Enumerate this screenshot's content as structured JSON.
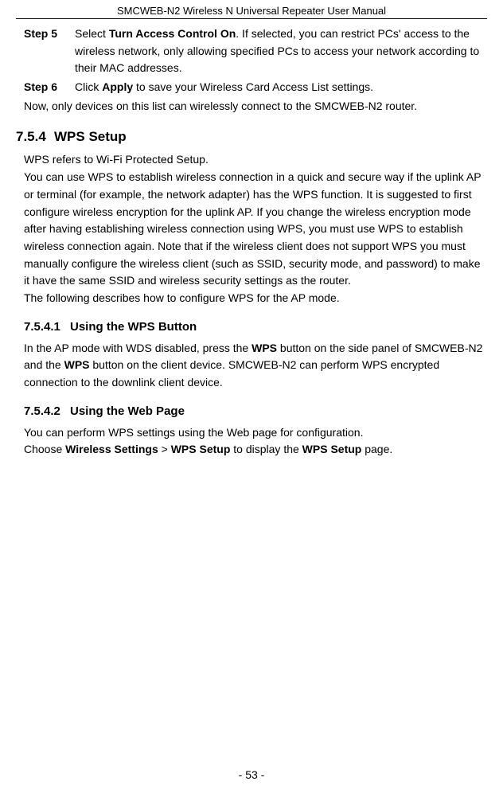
{
  "header": {
    "title": "SMCWEB-N2 Wireless N Universal Repeater User Manual"
  },
  "steps": {
    "step5_label": "Step 5",
    "step5_prefix": "Select ",
    "step5_bold": "Turn Access Control On",
    "step5_suffix": ". If selected, you can restrict PCs' access to the wireless network, only allowing specified PCs to access your network according to their MAC addresses.",
    "step6_label": "Step 6",
    "step6_prefix": "Click ",
    "step6_bold": "Apply",
    "step6_suffix": " to save your Wireless Card Access List settings.",
    "after_steps": "Now, only devices on this list can wirelessly connect to the SMCWEB-N2 router."
  },
  "section754": {
    "num": "7.5.4",
    "title": "WPS Setup",
    "p1": "WPS refers to Wi-Fi Protected Setup.",
    "p2": "You can use WPS to establish wireless connection in a quick and secure way if the uplink AP or terminal (for example, the network adapter) has the WPS function. It is suggested to first configure wireless encryption for the uplink AP. If you change the wireless encryption mode after having establishing wireless connection using WPS, you must use WPS to establish wireless connection again. Note that if the wireless client does not support WPS you must manually configure the wireless client (such as SSID, security mode, and password) to make it have the same SSID and wireless security settings as the router.",
    "p3": "The following describes how to configure WPS for the AP mode."
  },
  "section7541": {
    "num": "7.5.4.1",
    "title": "Using the WPS Button",
    "p_prefix1": "In the AP mode with WDS disabled, press the ",
    "p_bold1": "WPS",
    "p_mid1": " button on the side panel of SMCWEB-N2 and the ",
    "p_bold2": "WPS",
    "p_suffix1": " button on the client device. SMCWEB-N2 can perform WPS encrypted connection to the downlink client device."
  },
  "section7542": {
    "num": "7.5.4.2",
    "title": "Using the Web Page",
    "p1": "You can perform WPS settings using the Web page for configuration.",
    "p2_prefix": "Choose ",
    "p2_bold1": "Wireless Settings",
    "p2_mid1": " > ",
    "p2_bold2": "WPS Setup",
    "p2_mid2": " to display the ",
    "p2_bold3": "WPS Setup",
    "p2_suffix": " page."
  },
  "footer": {
    "page": "- 53 -"
  }
}
